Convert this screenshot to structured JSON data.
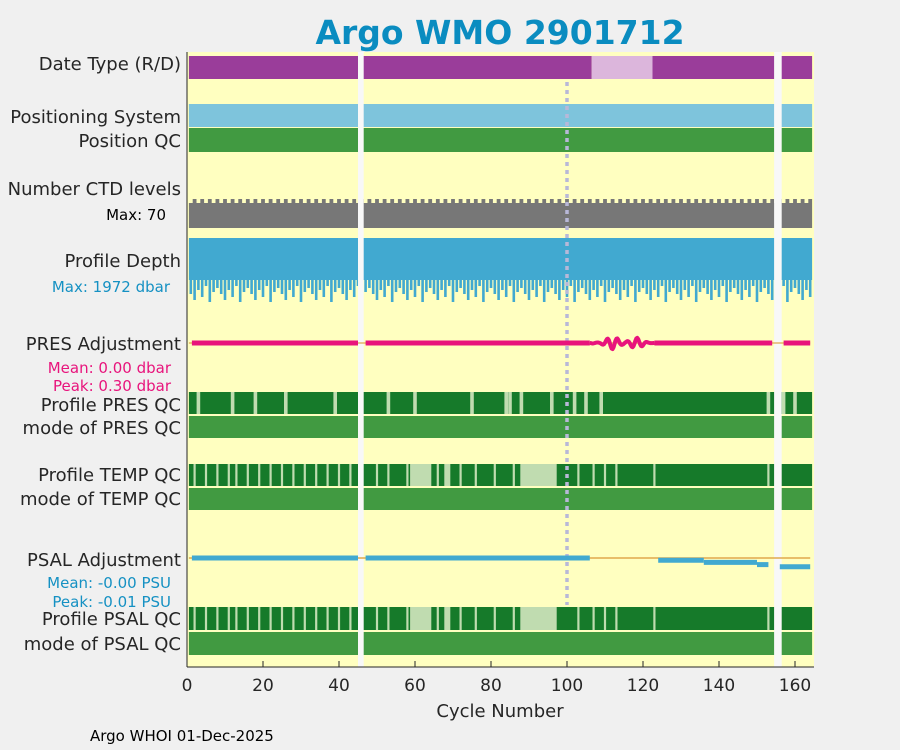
{
  "chart_data": {
    "type": "timeline",
    "title": "Argo WMO 2901712",
    "xlabel": "Cycle Number",
    "xlim": [
      0,
      165
    ],
    "xticks": [
      0,
      20,
      40,
      60,
      80,
      100,
      120,
      140,
      160
    ],
    "footer": "Argo WHOI 01-Dec-2025",
    "gaps": [
      [
        45,
        46.5
      ],
      [
        154.5,
        156.5
      ]
    ],
    "marker_cycle": 100,
    "row_labels": {
      "date_type": "Date Type (R/D)",
      "positioning": "Positioning System",
      "position_qc": "Position QC",
      "ctd_levels": "Number CTD levels",
      "profile_depth": "Profile Depth",
      "pres_adj": "PRES Adjustment",
      "pres_qc": "Profile PRES QC",
      "pres_mode": "mode of PRES QC",
      "temp_qc": "Profile TEMP QC",
      "temp_mode": "mode of TEMP QC",
      "psal_adj": "PSAL Adjustment",
      "psal_qc": "Profile PSAL QC",
      "psal_mode": "mode of PSAL QC"
    },
    "annotations": {
      "ctd_max": "Max: 70",
      "depth_max": "Max: 1972 dbar",
      "pres_mean": "Mean: 0.00 dbar",
      "pres_peak": "Peak: 0.30 dbar",
      "psal_mean": "Mean: -0.00 PSU",
      "psal_peak": "Peak: -0.01 PSU"
    },
    "date_type_segments": [
      {
        "from": 0.5,
        "to": 106.5,
        "mode": "D"
      },
      {
        "from": 106.5,
        "to": 122.5,
        "mode": "R"
      },
      {
        "from": 122.5,
        "to": 164.5,
        "mode": "D"
      }
    ],
    "pres_qc_light_cycles": [
      3,
      12,
      18,
      26,
      39,
      53,
      60,
      75,
      84,
      85,
      88,
      96,
      102,
      105,
      109,
      153,
      157,
      160
    ],
    "temp_qc_light_ranges": [
      [
        2,
        2
      ],
      [
        5,
        5
      ],
      [
        8,
        8
      ],
      [
        11,
        11
      ],
      [
        13,
        13
      ],
      [
        16,
        16
      ],
      [
        19,
        19
      ],
      [
        22,
        22
      ],
      [
        25,
        25
      ],
      [
        28,
        28
      ],
      [
        31,
        31
      ],
      [
        34,
        34
      ],
      [
        37,
        37
      ],
      [
        40,
        40
      ],
      [
        43,
        43
      ],
      [
        50,
        50
      ],
      [
        53,
        53
      ],
      [
        58,
        58
      ],
      [
        59,
        64
      ],
      [
        66,
        66
      ],
      [
        68,
        69
      ],
      [
        72,
        72
      ],
      [
        76,
        76
      ],
      [
        81,
        81
      ],
      [
        86,
        86
      ],
      [
        88,
        97
      ],
      [
        103,
        103
      ],
      [
        107,
        107
      ],
      [
        110,
        110
      ],
      [
        113,
        113
      ],
      [
        123,
        123
      ],
      [
        153,
        153
      ],
      [
        156,
        156
      ]
    ],
    "psal_qc_light_ranges": [
      [
        2,
        2
      ],
      [
        5,
        5
      ],
      [
        8,
        8
      ],
      [
        11,
        11
      ],
      [
        13,
        13
      ],
      [
        16,
        16
      ],
      [
        19,
        19
      ],
      [
        22,
        22
      ],
      [
        25,
        25
      ],
      [
        28,
        28
      ],
      [
        31,
        31
      ],
      [
        34,
        34
      ],
      [
        37,
        37
      ],
      [
        40,
        40
      ],
      [
        43,
        43
      ],
      [
        50,
        50
      ],
      [
        53,
        53
      ],
      [
        58,
        58
      ],
      [
        59,
        64
      ],
      [
        66,
        66
      ],
      [
        68,
        69
      ],
      [
        72,
        72
      ],
      [
        76,
        76
      ],
      [
        81,
        81
      ],
      [
        86,
        86
      ],
      [
        88,
        97
      ],
      [
        103,
        103
      ],
      [
        107,
        107
      ],
      [
        110,
        110
      ],
      [
        113,
        113
      ],
      [
        123,
        123
      ],
      [
        153,
        153
      ],
      [
        156,
        156
      ]
    ],
    "pres_adjustment": {
      "baseline": 0.0,
      "peak": 0.3,
      "wiggle_from": 106,
      "wiggle_to": 123,
      "data_end": 164
    },
    "psal_adjustment": {
      "baseline": 0.0,
      "peak": -0.01,
      "gap_from": 106,
      "gap_to": 124,
      "steps": [
        [
          124,
          136,
          -0.002
        ],
        [
          136,
          150,
          -0.004
        ],
        [
          150,
          153,
          -0.006
        ],
        [
          156,
          164,
          -0.008
        ]
      ]
    },
    "colors": {
      "plot_bg": "#ffffc0",
      "date_type_D": "#9a3d9a",
      "date_type_R": "#dcb6dc",
      "positioning": "#7ec4dc",
      "qc_good": "#419a41",
      "qc_dark": "#167a2a",
      "qc_light": "#c0dcb0",
      "ctd": "#777777",
      "depth": "#41a9d0",
      "pres_line": "#e8147c",
      "psal_line": "#41a9d0",
      "zero_line": "#e0a94c",
      "marker": "#b8b8d8",
      "title": "#0a8cc0",
      "gap": "#f8f8f8"
    }
  }
}
